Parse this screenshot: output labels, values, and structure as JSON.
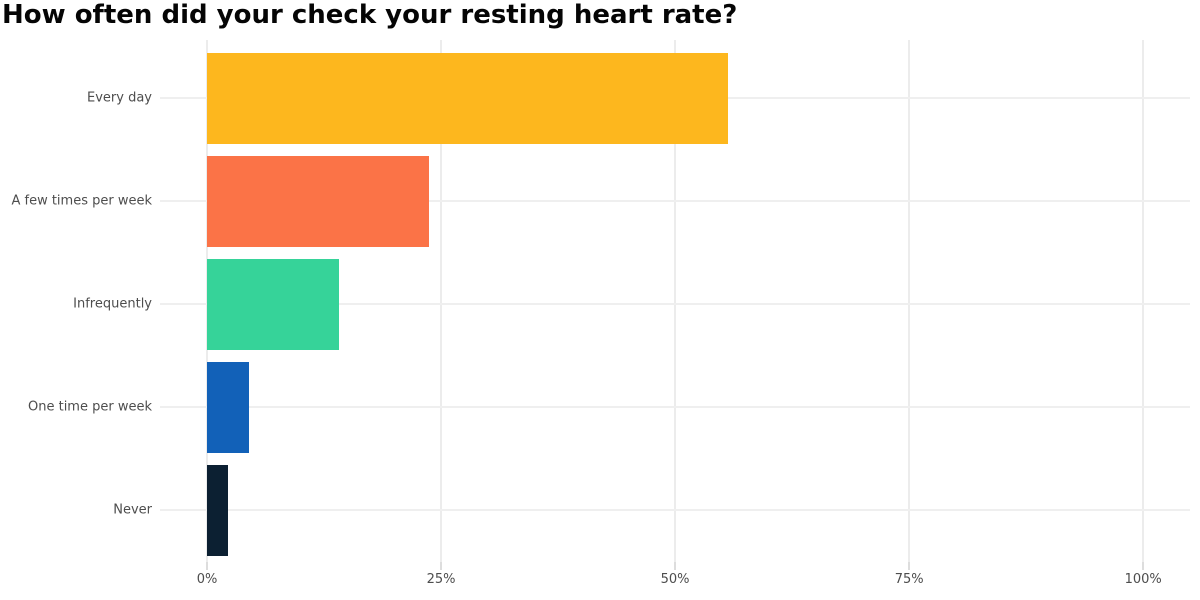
{
  "page": {
    "background_color": "#ffffff"
  },
  "chart_data": {
    "type": "bar",
    "orientation": "horizontal",
    "title": "How often did your check your resting heart rate?",
    "categories": [
      "Every day",
      "A few times per week",
      "Infrequently",
      "One time per week",
      "Never"
    ],
    "values": [
      55.6,
      23.7,
      14.1,
      4.5,
      2.2
    ],
    "value_unit": "%",
    "bar_colors": [
      "#FDB71E",
      "#FB7347",
      "#36D399",
      "#1261B8",
      "#0C2032"
    ],
    "x_tick_values": [
      0,
      25,
      50,
      75,
      100
    ],
    "x_tick_labels": [
      "0%",
      "25%",
      "50%",
      "75%",
      "100%"
    ],
    "xlim": [
      0,
      105
    ],
    "xlabel": "",
    "ylabel": "",
    "grid": true,
    "legend_position": "none"
  },
  "style": {
    "title_color": "#050505",
    "label_color": "#4d4d4d",
    "gridline_color": "#ececec",
    "row_line_color": "#efefef",
    "tick_mark_color": "#dddddd"
  }
}
